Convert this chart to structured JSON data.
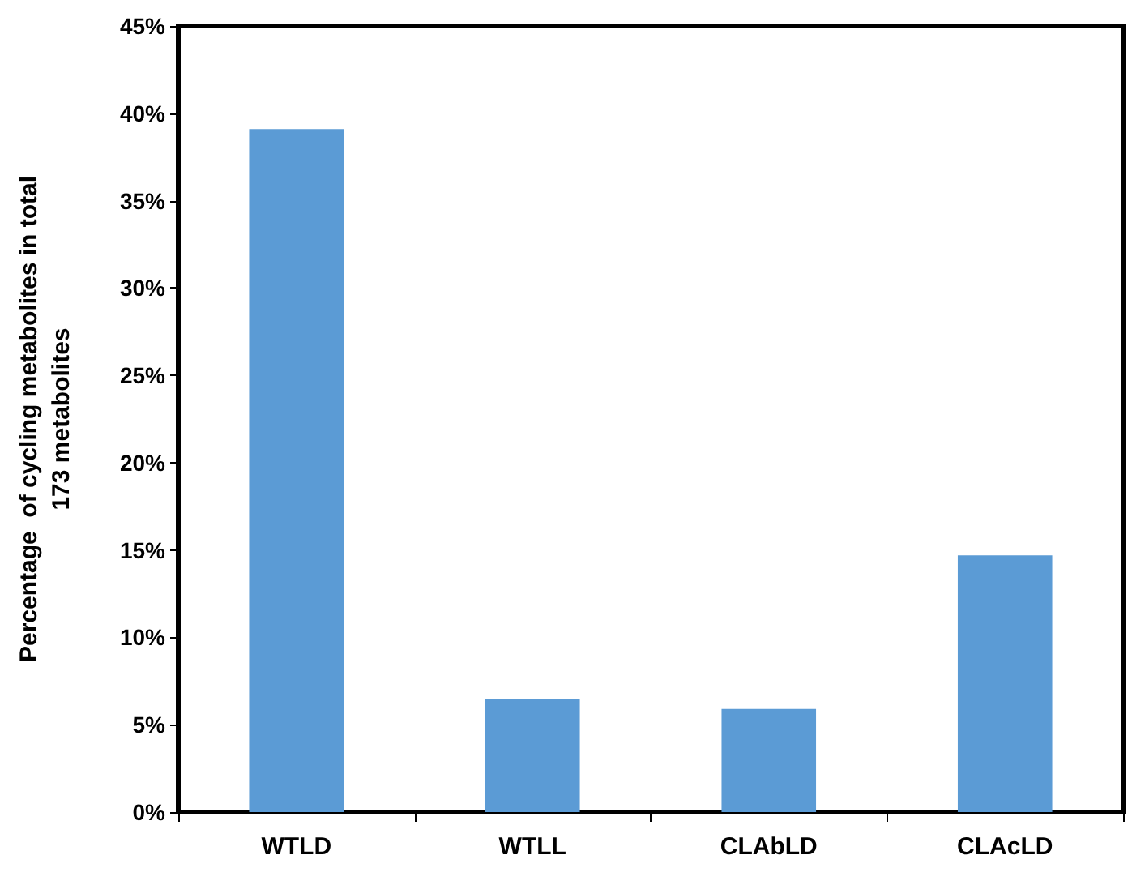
{
  "chart_data": {
    "type": "bar",
    "ylabel": "Percentage  of cycling metabolites in total\n173 metabolites",
    "categories": [
      "WTLD",
      "WTLL",
      "CLAbLD",
      "CLAcLD"
    ],
    "values": [
      39.1,
      6.5,
      5.9,
      14.7
    ],
    "color": "#5b9bd5",
    "ylim": [
      0,
      45
    ],
    "yticks": [
      {
        "value": 0,
        "label": "0%"
      },
      {
        "value": 5,
        "label": "5%"
      },
      {
        "value": 10,
        "label": "10%"
      },
      {
        "value": 15,
        "label": "15%"
      },
      {
        "value": 20,
        "label": "20%"
      },
      {
        "value": 25,
        "label": "25%"
      },
      {
        "value": 30,
        "label": "30%"
      },
      {
        "value": 35,
        "label": "35%"
      },
      {
        "value": 40,
        "label": "40%"
      },
      {
        "value": 45,
        "label": "45%"
      }
    ],
    "grid": false
  }
}
